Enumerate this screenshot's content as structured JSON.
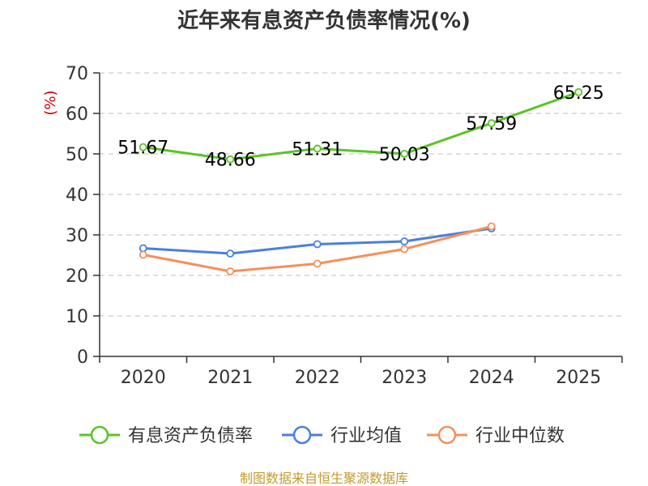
{
  "chart_data": {
    "type": "line",
    "title": "近年来有息资产负债率情况(%)",
    "ylabel": "(%)",
    "xlabel": "",
    "ylim": [
      0,
      70
    ],
    "yticks": [
      0,
      10,
      20,
      30,
      40,
      50,
      60,
      70
    ],
    "categories": [
      "2020",
      "2021",
      "2022",
      "2023",
      "2024",
      "2025"
    ],
    "grid": "horizontal dashed",
    "legend_position": "bottom",
    "series": [
      {
        "name": "有息资产负债率",
        "color": "#5bc427",
        "values": [
          51.67,
          48.66,
          51.31,
          50.03,
          57.59,
          65.25
        ],
        "labels": [
          "51.67",
          "48.66",
          "51.31",
          "50.03",
          "57.59",
          "65.25"
        ]
      },
      {
        "name": "行业均值",
        "color": "#4a7fde",
        "values": [
          26.7,
          25.4,
          27.7,
          28.4,
          31.6,
          null
        ]
      },
      {
        "name": "行业中位数",
        "color": "#f5905a",
        "values": [
          25.1,
          21.0,
          22.9,
          26.5,
          32.1,
          null
        ]
      }
    ]
  },
  "source": "制图数据来自恒生聚源数据库"
}
